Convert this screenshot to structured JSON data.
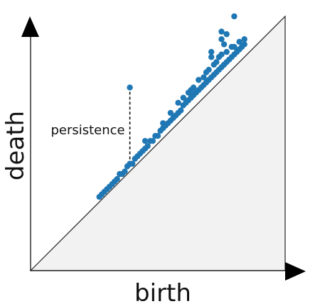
{
  "chart_data": {
    "type": "scatter",
    "xlabel": "birth",
    "ylabel": "death",
    "annotation": "persistence",
    "diagonal": true,
    "axes_arrows": true,
    "xlim": [
      0,
      1
    ],
    "ylim": [
      0,
      1
    ],
    "highlight_point": {
      "x": 0.39,
      "y": 0.72
    },
    "points": [
      {
        "x": 0.27,
        "y": 0.29
      },
      {
        "x": 0.28,
        "y": 0.3
      },
      {
        "x": 0.29,
        "y": 0.31
      },
      {
        "x": 0.3,
        "y": 0.32
      },
      {
        "x": 0.31,
        "y": 0.33
      },
      {
        "x": 0.32,
        "y": 0.34
      },
      {
        "x": 0.33,
        "y": 0.35
      },
      {
        "x": 0.34,
        "y": 0.36
      },
      {
        "x": 0.35,
        "y": 0.38
      },
      {
        "x": 0.36,
        "y": 0.38
      },
      {
        "x": 0.37,
        "y": 0.39
      },
      {
        "x": 0.38,
        "y": 0.41
      },
      {
        "x": 0.39,
        "y": 0.42
      },
      {
        "x": 0.4,
        "y": 0.42
      },
      {
        "x": 0.41,
        "y": 0.44
      },
      {
        "x": 0.42,
        "y": 0.45
      },
      {
        "x": 0.43,
        "y": 0.46
      },
      {
        "x": 0.44,
        "y": 0.47
      },
      {
        "x": 0.45,
        "y": 0.48
      },
      {
        "x": 0.46,
        "y": 0.49
      },
      {
        "x": 0.47,
        "y": 0.51
      },
      {
        "x": 0.48,
        "y": 0.51
      },
      {
        "x": 0.49,
        "y": 0.53
      },
      {
        "x": 0.5,
        "y": 0.53
      },
      {
        "x": 0.51,
        "y": 0.55
      },
      {
        "x": 0.52,
        "y": 0.56
      },
      {
        "x": 0.53,
        "y": 0.57
      },
      {
        "x": 0.54,
        "y": 0.58
      },
      {
        "x": 0.55,
        "y": 0.59
      },
      {
        "x": 0.56,
        "y": 0.6
      },
      {
        "x": 0.57,
        "y": 0.61
      },
      {
        "x": 0.58,
        "y": 0.62
      },
      {
        "x": 0.59,
        "y": 0.63
      },
      {
        "x": 0.6,
        "y": 0.65
      },
      {
        "x": 0.61,
        "y": 0.66
      },
      {
        "x": 0.62,
        "y": 0.67
      },
      {
        "x": 0.63,
        "y": 0.68
      },
      {
        "x": 0.64,
        "y": 0.69
      },
      {
        "x": 0.65,
        "y": 0.7
      },
      {
        "x": 0.66,
        "y": 0.71
      },
      {
        "x": 0.67,
        "y": 0.72
      },
      {
        "x": 0.68,
        "y": 0.73
      },
      {
        "x": 0.69,
        "y": 0.74
      },
      {
        "x": 0.7,
        "y": 0.75
      },
      {
        "x": 0.71,
        "y": 0.76
      },
      {
        "x": 0.72,
        "y": 0.77
      },
      {
        "x": 0.73,
        "y": 0.78
      },
      {
        "x": 0.74,
        "y": 0.79
      },
      {
        "x": 0.75,
        "y": 0.8
      },
      {
        "x": 0.76,
        "y": 0.81
      },
      {
        "x": 0.77,
        "y": 0.82
      },
      {
        "x": 0.78,
        "y": 0.83
      },
      {
        "x": 0.79,
        "y": 0.84
      },
      {
        "x": 0.8,
        "y": 0.85
      },
      {
        "x": 0.81,
        "y": 0.86
      },
      {
        "x": 0.82,
        "y": 0.87
      },
      {
        "x": 0.83,
        "y": 0.88
      },
      {
        "x": 0.84,
        "y": 0.89
      },
      {
        "x": 0.45,
        "y": 0.51
      },
      {
        "x": 0.52,
        "y": 0.58
      },
      {
        "x": 0.55,
        "y": 0.62
      },
      {
        "x": 0.58,
        "y": 0.66
      },
      {
        "x": 0.6,
        "y": 0.68
      },
      {
        "x": 0.62,
        "y": 0.7
      },
      {
        "x": 0.63,
        "y": 0.71
      },
      {
        "x": 0.64,
        "y": 0.72
      },
      {
        "x": 0.66,
        "y": 0.75
      },
      {
        "x": 0.68,
        "y": 0.76
      },
      {
        "x": 0.69,
        "y": 0.78
      },
      {
        "x": 0.7,
        "y": 0.79
      },
      {
        "x": 0.72,
        "y": 0.81
      },
      {
        "x": 0.73,
        "y": 0.82
      },
      {
        "x": 0.74,
        "y": 0.84
      },
      {
        "x": 0.75,
        "y": 0.85
      },
      {
        "x": 0.77,
        "y": 0.86
      },
      {
        "x": 0.79,
        "y": 0.88
      },
      {
        "x": 0.8,
        "y": 0.88
      },
      {
        "x": 0.82,
        "y": 0.9
      },
      {
        "x": 0.84,
        "y": 0.91
      },
      {
        "x": 0.76,
        "y": 0.89
      },
      {
        "x": 0.71,
        "y": 0.84
      },
      {
        "x": 0.75,
        "y": 0.94
      },
      {
        "x": 0.77,
        "y": 0.93
      },
      {
        "x": 0.71,
        "y": 0.86
      },
      {
        "x": 0.75,
        "y": 0.91
      },
      {
        "x": 0.8,
        "y": 1.0
      }
    ]
  }
}
